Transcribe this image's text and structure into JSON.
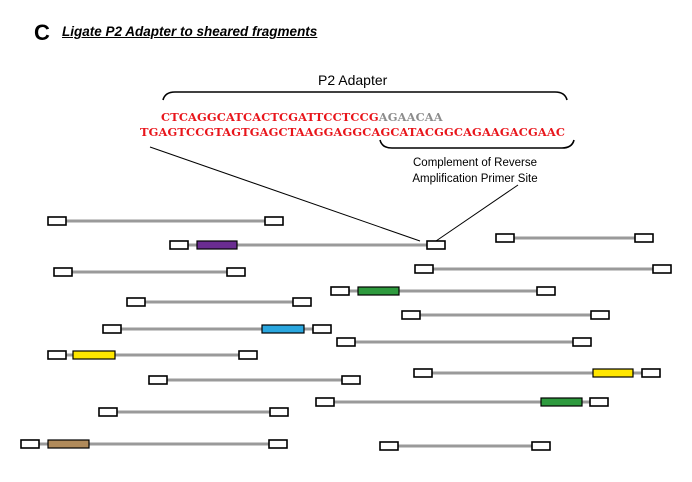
{
  "panel": {
    "letter": "C",
    "title": "Ligate P2 Adapter to sheared fragments"
  },
  "adapter": {
    "label": "P2 Adapter",
    "top_strand_red": "CTCAGGCATCACTCGATTCCTCCG",
    "top_strand_gray": "AGAACAA",
    "bottom_strand": "TGAGTCCGTAGTGAGCTAAGGAGGCAGCATACGGCAGAAGACGAAC",
    "complement_note_line1": "Complement of Reverse",
    "complement_note_line2": "Amplification Primer Site"
  },
  "colors": {
    "sequence_red": "#e8151b",
    "sequence_gray": "#8c8c8c",
    "fragment_line": "#9a9a9a",
    "purple": "#6a2c91",
    "green": "#2e9a3e",
    "blue": "#2aa7df",
    "yellow": "#ffe600",
    "tan": "#b08a5a"
  }
}
